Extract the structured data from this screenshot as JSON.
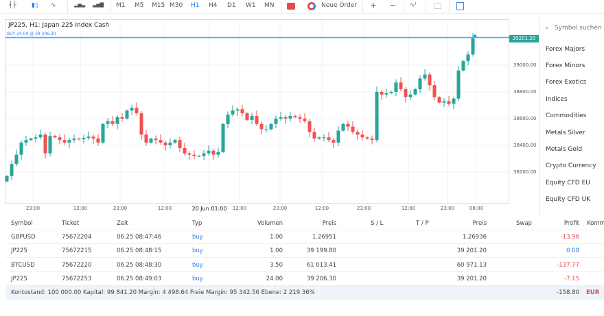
{
  "toolbar": {
    "icons": [
      "bar-chart-icon",
      "candlestick-icon",
      "line-chart-icon",
      "volume-icon",
      "tick-volume-icon"
    ],
    "timeframes": [
      "M1",
      "M5",
      "M15",
      "M30",
      "H1",
      "H4",
      "D1",
      "W1",
      "MN"
    ],
    "active_timeframe": "H1",
    "new_order": "Neue Order",
    "zoom_in": "+",
    "zoom_out": "−"
  },
  "chart": {
    "title": "JP225, H1: Japan 225 Index Cash",
    "buy_line_label": "BUY 24.00 @ 39 206.30",
    "current_price": "39201.20",
    "colors": {
      "up": "#26a69a",
      "down": "#ef5350",
      "buy_line": "#5bb4d6"
    }
  },
  "chart_data": {
    "type": "candlestick",
    "ylim": [
      38100,
      39240
    ],
    "y_ticks": [
      "39000.00",
      "38800.00",
      "38600.00",
      "38400.00",
      "38200.00"
    ],
    "x_ticks": [
      "23:00",
      "12:00",
      "23:00",
      "12:00",
      "20 Jun 01:00",
      "12:00",
      "23:00",
      "12:00",
      "23:00",
      "12:00",
      "23:00",
      "08:00"
    ],
    "first_open": 38130,
    "close": [
      38170,
      38260,
      38330,
      38420,
      38440,
      38450,
      38460,
      38480,
      38340,
      38470,
      38460,
      38440,
      38420,
      38440,
      38450,
      38445,
      38455,
      38465,
      38450,
      38420,
      38560,
      38580,
      38560,
      38610,
      38600,
      38660,
      38680,
      38640,
      38480,
      38420,
      38450,
      38440,
      38420,
      38400,
      38420,
      38440,
      38380,
      38340,
      38330,
      38320,
      38320,
      38340,
      38360,
      38330,
      38350,
      38560,
      38630,
      38660,
      38670,
      38640,
      38590,
      38620,
      38560,
      38520,
      38520,
      38560,
      38600,
      38610,
      38600,
      38620,
      38610,
      38600,
      38580,
      38500,
      38450,
      38460,
      38460,
      38440,
      38420,
      38510,
      38560,
      38540,
      38500,
      38480,
      38460,
      38450,
      38440,
      38800,
      38780,
      38790,
      38800,
      38870,
      38820,
      38760,
      38780,
      38820,
      38900,
      38930,
      38850,
      38760,
      38720,
      38730,
      38710,
      38750,
      38960,
      39030,
      39080,
      39200
    ]
  },
  "symbol_panel": {
    "search_placeholder": "Symbol suchen",
    "items": [
      "Forex Majors",
      "Forex Minors",
      "Forex Exotics",
      "Indices",
      "Commodities",
      "Metals Silver",
      "Metals Gold",
      "Crypto Currency",
      "Equity CFD EU",
      "Equity CFD UK"
    ]
  },
  "positions": {
    "headers": [
      "Symbol",
      "Ticket",
      "Zeit",
      "Typ",
      "Volumen",
      "Preis",
      "S / L",
      "T / P",
      "Preis",
      "Swap",
      "Profit",
      "Komm"
    ],
    "rows": [
      {
        "symbol": "GBPUSD",
        "ticket": "75672204",
        "time": "06.25 08:47:46",
        "type": "buy",
        "volume": "1.00",
        "open_price": "1.26951",
        "price": "1.26936",
        "profit": "-13.96"
      },
      {
        "symbol": "JP225",
        "ticket": "75672215",
        "time": "06.25 08:48:15",
        "type": "buy",
        "volume": "1.00",
        "open_price": "39 199.80",
        "price": "39 201.20",
        "profit": "0.08"
      },
      {
        "symbol": "BTCUSD",
        "ticket": "75672220",
        "time": "06.25 08:48:30",
        "type": "buy",
        "volume": "3.50",
        "open_price": "61 013.41",
        "price": "60 971.13",
        "profit": "-137.77"
      },
      {
        "symbol": "JP225",
        "ticket": "75672253",
        "time": "06.25 08:49:03",
        "type": "buy",
        "volume": "24.00",
        "open_price": "39 206.30",
        "price": "39 201.20",
        "profit": "-7.15"
      }
    ],
    "summary": {
      "text": "Kontostand: 100 000.00   Kapital: 99 841.20   Margin: 4 498.64   Freie Margin: 95 342.56   Ebene: 2 219.36%",
      "total": "-158.80",
      "currency": "EUR"
    }
  }
}
